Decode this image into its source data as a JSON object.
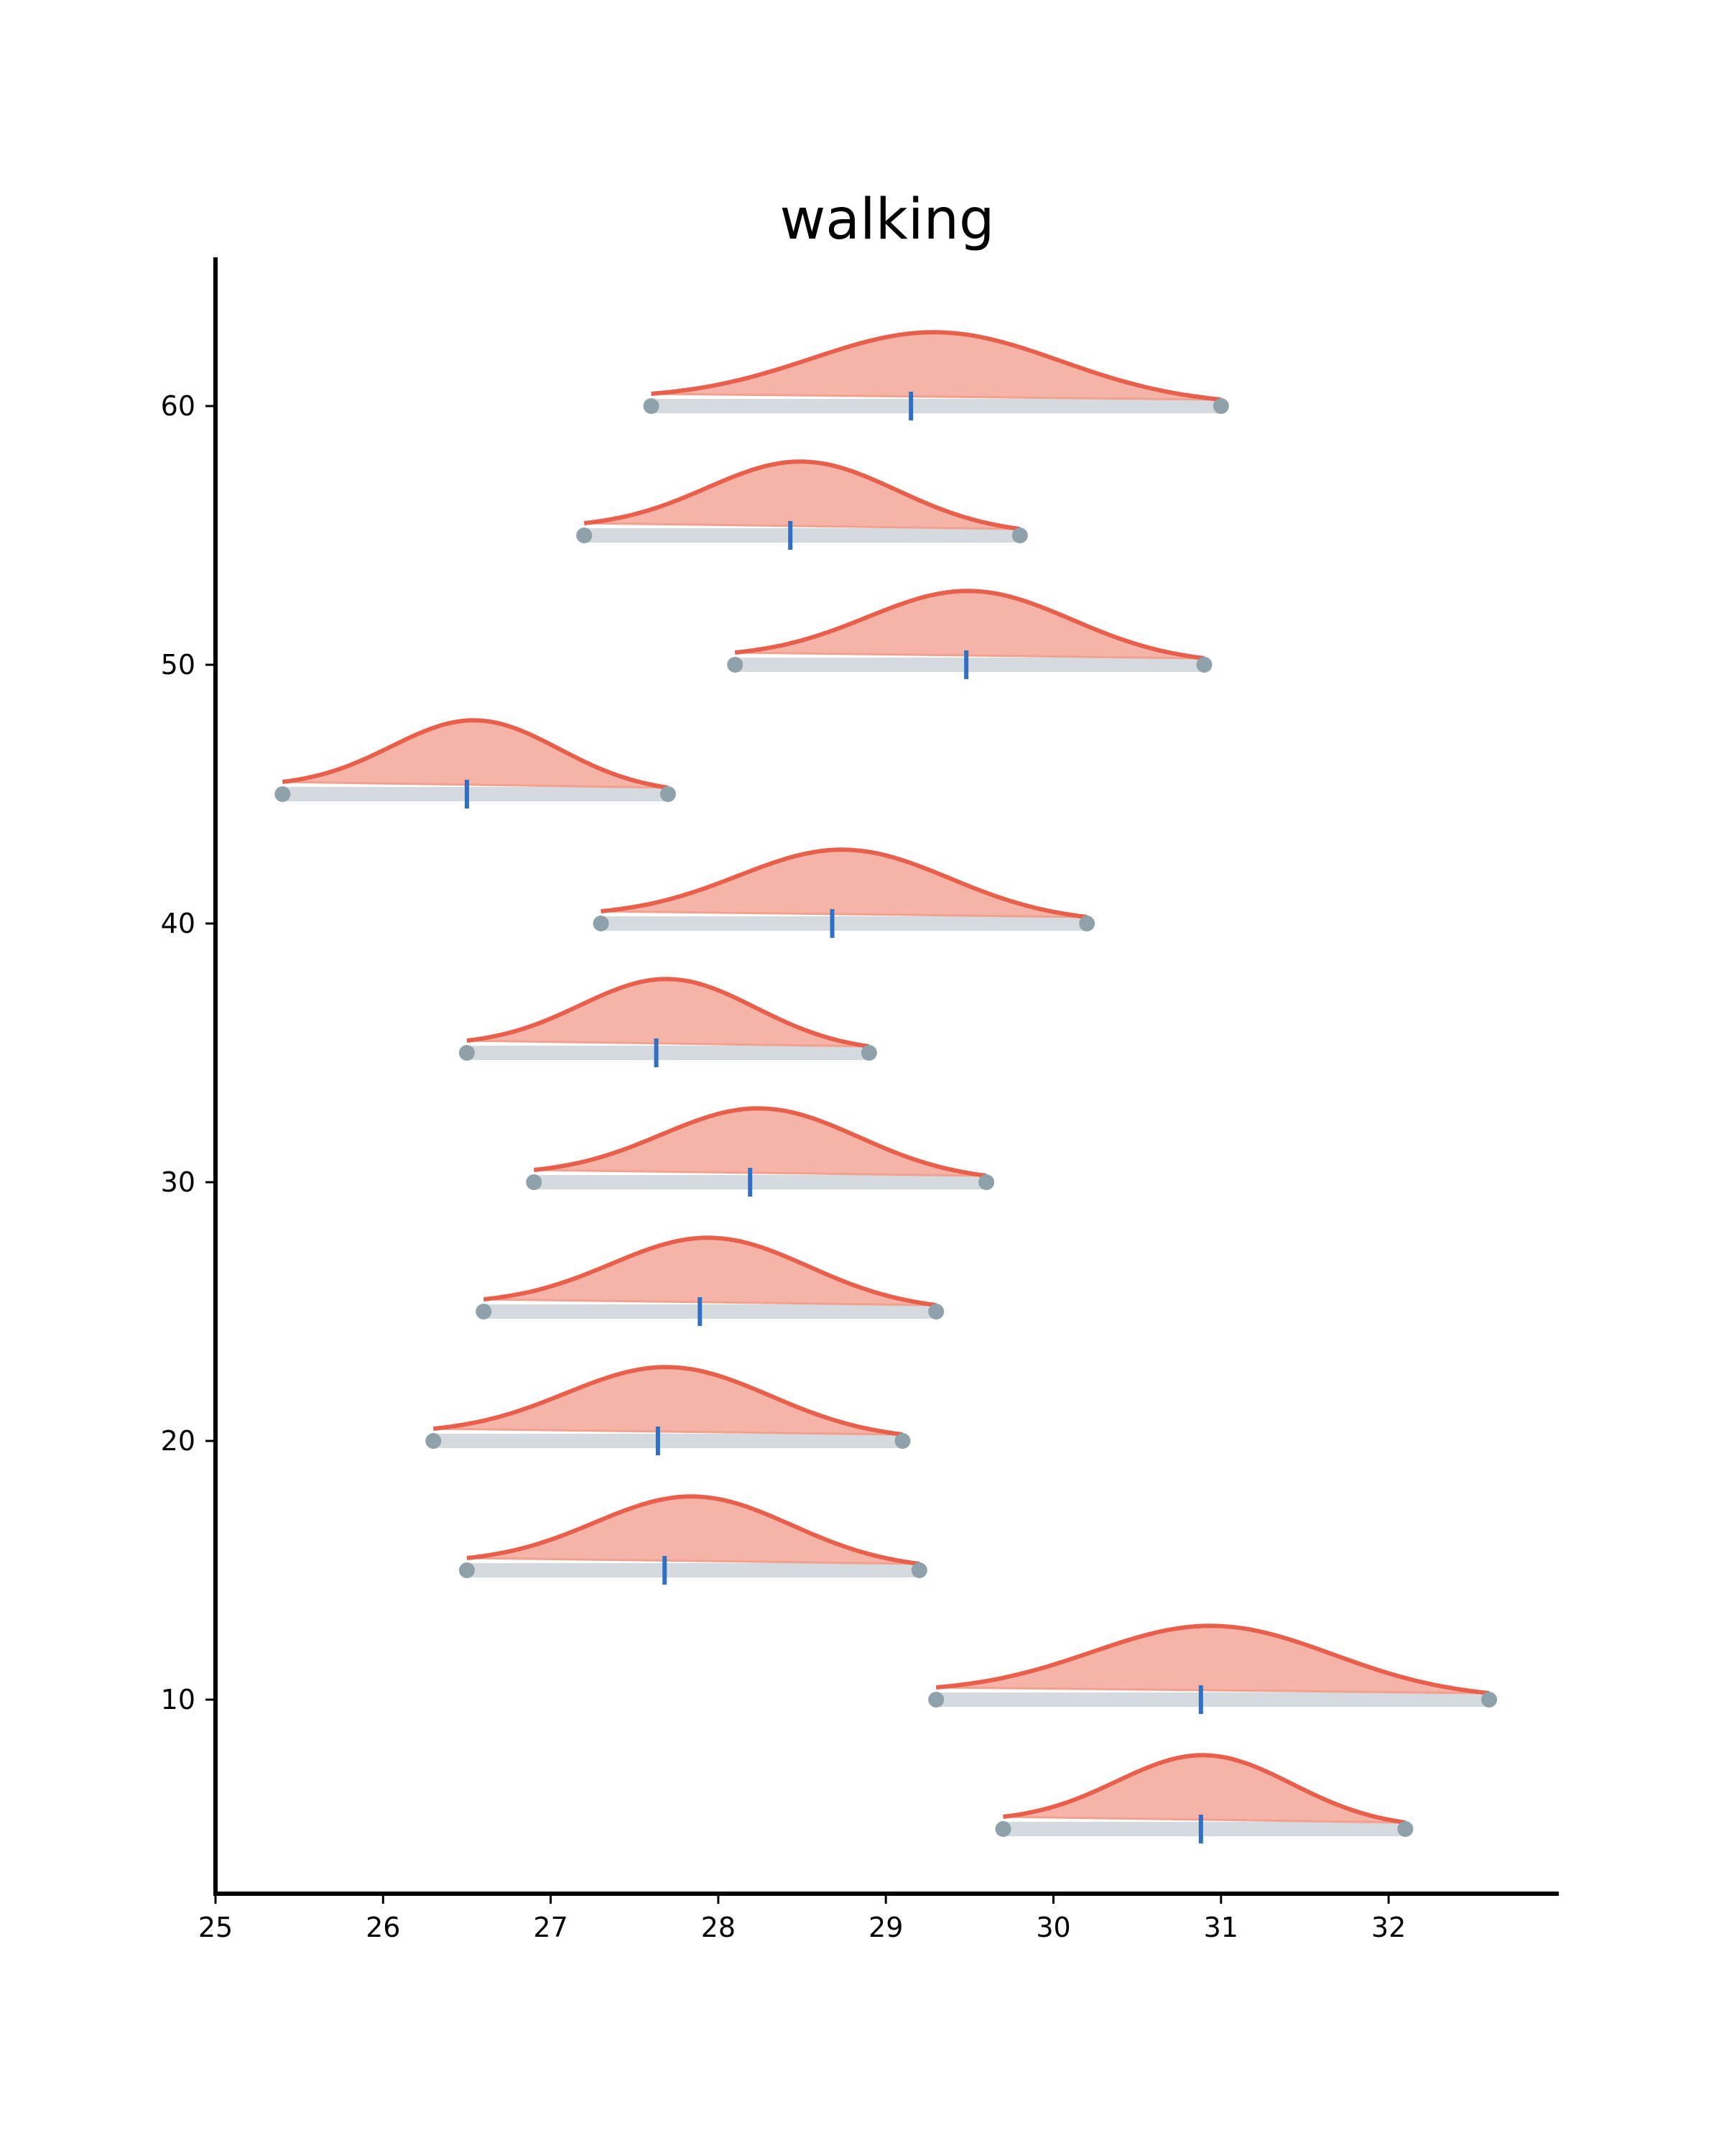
{
  "chart_data": {
    "type": "ridgeline",
    "title": "walking",
    "xlabel": "",
    "ylabel": "",
    "xlim": [
      25,
      33
    ],
    "ylim": [
      2.5,
      65
    ],
    "xticks": [
      25,
      26,
      27,
      28,
      29,
      30,
      31,
      32
    ],
    "yticks": [
      10,
      20,
      30,
      40,
      50,
      60
    ],
    "grid": false,
    "legend": "none",
    "colors": {
      "curve": "#e8604c",
      "fill": "#f5b0a3",
      "range_bar": "#d4dadd",
      "endpoint": "#8fa1aa",
      "median": "#2f6fc4",
      "axis": "#000000"
    },
    "series": [
      {
        "y": 60,
        "min": 27.6,
        "max": 31.0,
        "median": 29.15
      },
      {
        "y": 55,
        "min": 27.2,
        "max": 29.8,
        "median": 28.43
      },
      {
        "y": 50,
        "min": 28.1,
        "max": 30.9,
        "median": 29.48
      },
      {
        "y": 45,
        "min": 25.4,
        "max": 27.7,
        "median": 26.5
      },
      {
        "y": 40,
        "min": 27.3,
        "max": 30.2,
        "median": 28.68
      },
      {
        "y": 35,
        "min": 26.5,
        "max": 28.9,
        "median": 27.63
      },
      {
        "y": 30,
        "min": 26.9,
        "max": 29.6,
        "median": 28.19
      },
      {
        "y": 25,
        "min": 26.6,
        "max": 29.3,
        "median": 27.89
      },
      {
        "y": 20,
        "min": 26.3,
        "max": 29.1,
        "median": 27.64
      },
      {
        "y": 15,
        "min": 26.5,
        "max": 29.2,
        "median": 27.68
      },
      {
        "y": 10,
        "min": 29.3,
        "max": 32.6,
        "median": 30.88
      },
      {
        "y": 5,
        "min": 29.7,
        "max": 32.1,
        "median": 30.88
      }
    ]
  }
}
